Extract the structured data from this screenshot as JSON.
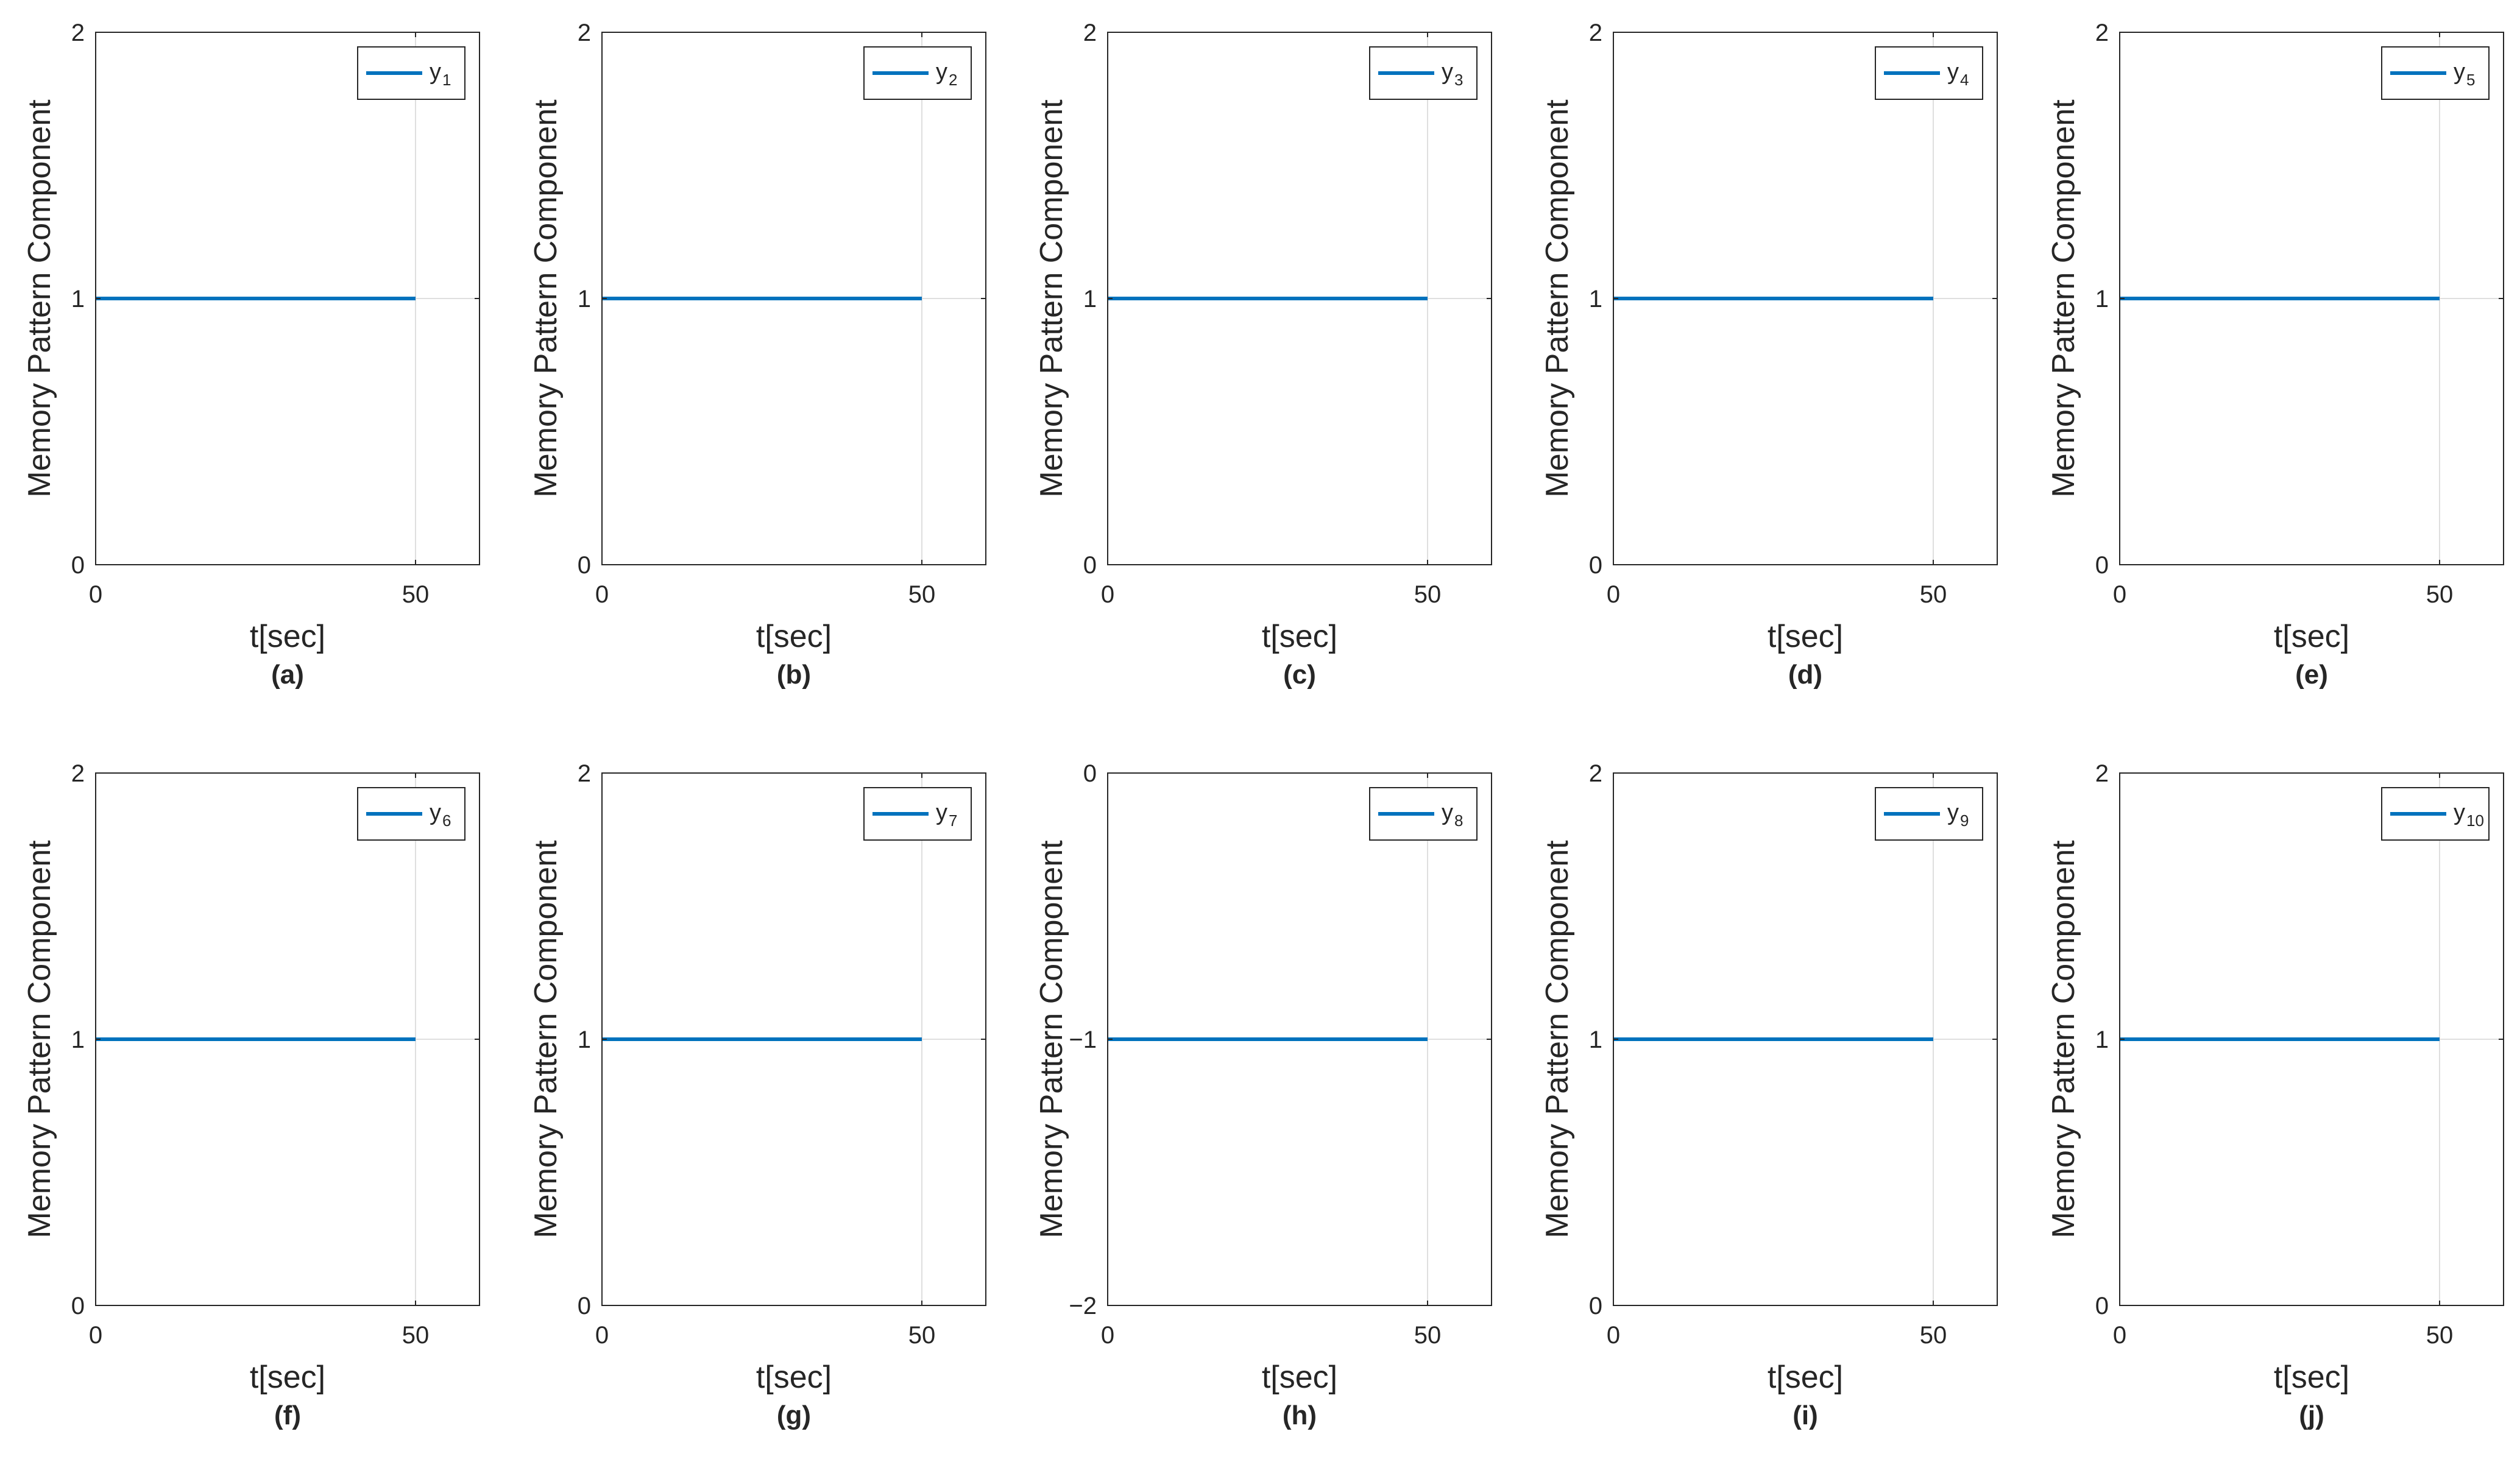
{
  "chart_data": [
    {
      "type": "line",
      "caption": "(a)",
      "xlabel": "t[sec]",
      "ylabel": "Memory Pattern Component",
      "xlim": [
        0,
        60
      ],
      "ylim": [
        0,
        2
      ],
      "xticks": [
        0,
        50
      ],
      "yticks": [
        0,
        1,
        2
      ],
      "grid": true,
      "legend_position": "top-right",
      "series": [
        {
          "name": "y",
          "subscript": "1",
          "color": "#0072BD",
          "x": [
            0,
            50
          ],
          "y": [
            1,
            1
          ]
        }
      ]
    },
    {
      "type": "line",
      "caption": "(b)",
      "xlabel": "t[sec]",
      "ylabel": "Memory Pattern Component",
      "xlim": [
        0,
        60
      ],
      "ylim": [
        0,
        2
      ],
      "xticks": [
        0,
        50
      ],
      "yticks": [
        0,
        1,
        2
      ],
      "grid": true,
      "legend_position": "top-right",
      "series": [
        {
          "name": "y",
          "subscript": "2",
          "color": "#0072BD",
          "x": [
            0,
            50
          ],
          "y": [
            1,
            1
          ]
        }
      ]
    },
    {
      "type": "line",
      "caption": "(c)",
      "xlabel": "t[sec]",
      "ylabel": "Memory Pattern Component",
      "xlim": [
        0,
        60
      ],
      "ylim": [
        0,
        2
      ],
      "xticks": [
        0,
        50
      ],
      "yticks": [
        0,
        1,
        2
      ],
      "grid": true,
      "legend_position": "top-right",
      "series": [
        {
          "name": "y",
          "subscript": "3",
          "color": "#0072BD",
          "x": [
            0,
            50
          ],
          "y": [
            1,
            1
          ]
        }
      ]
    },
    {
      "type": "line",
      "caption": "(d)",
      "xlabel": "t[sec]",
      "ylabel": "Memory Pattern Component",
      "xlim": [
        0,
        60
      ],
      "ylim": [
        0,
        2
      ],
      "xticks": [
        0,
        50
      ],
      "yticks": [
        0,
        1,
        2
      ],
      "grid": true,
      "legend_position": "top-right",
      "series": [
        {
          "name": "y",
          "subscript": "4",
          "color": "#0072BD",
          "x": [
            0,
            50
          ],
          "y": [
            1,
            1
          ]
        }
      ]
    },
    {
      "type": "line",
      "caption": "(e)",
      "xlabel": "t[sec]",
      "ylabel": "Memory Pattern Component",
      "xlim": [
        0,
        60
      ],
      "ylim": [
        0,
        2
      ],
      "xticks": [
        0,
        50
      ],
      "yticks": [
        0,
        1,
        2
      ],
      "grid": true,
      "legend_position": "top-right",
      "series": [
        {
          "name": "y",
          "subscript": "5",
          "color": "#0072BD",
          "x": [
            0,
            50
          ],
          "y": [
            1,
            1
          ]
        }
      ]
    },
    {
      "type": "line",
      "caption": "(f)",
      "xlabel": "t[sec]",
      "ylabel": "Memory Pattern Component",
      "xlim": [
        0,
        60
      ],
      "ylim": [
        0,
        2
      ],
      "xticks": [
        0,
        50
      ],
      "yticks": [
        0,
        1,
        2
      ],
      "grid": true,
      "legend_position": "top-right",
      "series": [
        {
          "name": "y",
          "subscript": "6",
          "color": "#0072BD",
          "x": [
            0,
            50
          ],
          "y": [
            1,
            1
          ]
        }
      ]
    },
    {
      "type": "line",
      "caption": "(g)",
      "xlabel": "t[sec]",
      "ylabel": "Memory Pattern Component",
      "xlim": [
        0,
        60
      ],
      "ylim": [
        0,
        2
      ],
      "xticks": [
        0,
        50
      ],
      "yticks": [
        0,
        1,
        2
      ],
      "grid": true,
      "legend_position": "top-right",
      "series": [
        {
          "name": "y",
          "subscript": "7",
          "color": "#0072BD",
          "x": [
            0,
            50
          ],
          "y": [
            1,
            1
          ]
        }
      ]
    },
    {
      "type": "line",
      "caption": "(h)",
      "xlabel": "t[sec]",
      "ylabel": "Memory Pattern Component",
      "xlim": [
        0,
        60
      ],
      "ylim": [
        -2,
        0
      ],
      "xticks": [
        0,
        50
      ],
      "yticks": [
        -2,
        -1,
        0
      ],
      "grid": true,
      "legend_position": "top-right",
      "series": [
        {
          "name": "y",
          "subscript": "8",
          "color": "#0072BD",
          "x": [
            0,
            50
          ],
          "y": [
            -1,
            -1
          ]
        }
      ]
    },
    {
      "type": "line",
      "caption": "(i)",
      "xlabel": "t[sec]",
      "ylabel": "Memory Pattern Component",
      "xlim": [
        0,
        60
      ],
      "ylim": [
        0,
        2
      ],
      "xticks": [
        0,
        50
      ],
      "yticks": [
        0,
        1,
        2
      ],
      "grid": true,
      "legend_position": "top-right",
      "series": [
        {
          "name": "y",
          "subscript": "9",
          "color": "#0072BD",
          "x": [
            0,
            50
          ],
          "y": [
            1,
            1
          ]
        }
      ]
    },
    {
      "type": "line",
      "caption": "(j)",
      "xlabel": "t[sec]",
      "ylabel": "Memory Pattern Component",
      "xlim": [
        0,
        60
      ],
      "ylim": [
        0,
        2
      ],
      "xticks": [
        0,
        50
      ],
      "yticks": [
        0,
        1,
        2
      ],
      "grid": true,
      "legend_position": "top-right",
      "series": [
        {
          "name": "y",
          "subscript": "10",
          "color": "#0072BD",
          "x": [
            0,
            50
          ],
          "y": [
            1,
            1
          ]
        }
      ]
    }
  ],
  "colors": {
    "axis": "#262626",
    "grid": "#dfdfdf",
    "series": "#0072BD"
  }
}
